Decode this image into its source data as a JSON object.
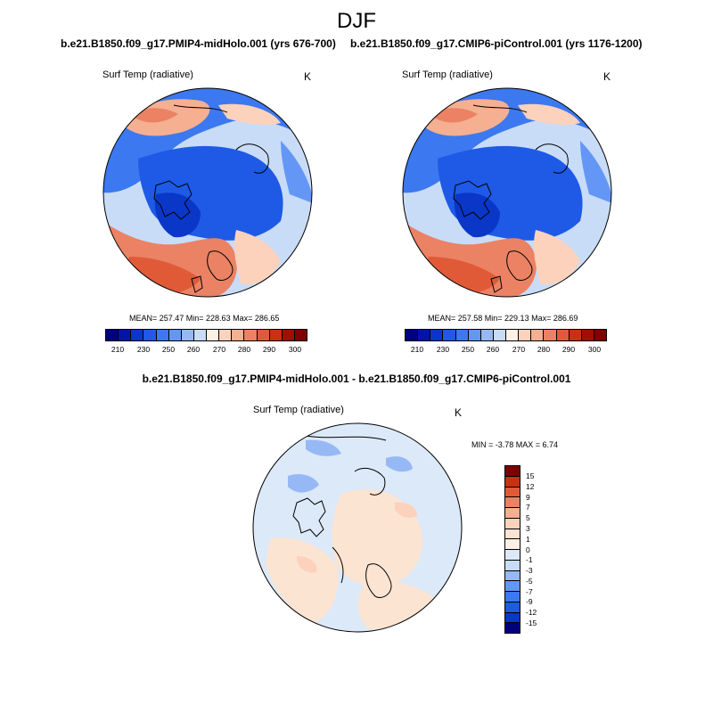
{
  "figure": {
    "title": "DJF"
  },
  "panels": [
    {
      "title": "b.e21.B1850.f09_g17.PMIP4-midHolo.001 (yrs 676-700)",
      "variable": "Surf Temp (radiative)",
      "units": "K",
      "stats": "MEAN= 257.47  Min= 228.63  Max= 286.65",
      "colorbar_labels": [
        "210",
        "230",
        "250",
        "260",
        "270",
        "280",
        "290",
        "300"
      ]
    },
    {
      "title": "b.e21.B1850.f09_g17.CMIP6-piControl.001 (yrs 1176-1200)",
      "variable": "Surf Temp (radiative)",
      "units": "K",
      "stats": "MEAN= 257.58  Min= 229.13  Max= 286.69",
      "colorbar_labels": [
        "210",
        "230",
        "250",
        "260",
        "270",
        "280",
        "290",
        "300"
      ]
    },
    {
      "title": "b.e21.B1850.f09_g17.PMIP4-midHolo.001 - b.e21.B1850.f09_g17.CMIP6-piControl.001",
      "variable": "Surf Temp (radiative)",
      "units": "K",
      "stats": "MIN =  -3.78 MAX =   6.74",
      "colorbar_labels": [
        "15",
        "12",
        "9",
        "7",
        "5",
        "3",
        "1",
        "0",
        "-1",
        "-3",
        "-5",
        "-7",
        "-9",
        "-12",
        "-15"
      ]
    }
  ],
  "colors": {
    "temp_scale": [
      "#00007f",
      "#0014a8",
      "#0a37c8",
      "#1e5ae6",
      "#3c78f0",
      "#6496f5",
      "#96b9f5",
      "#c8dcf8",
      "#fff0e6",
      "#fcd2bc",
      "#f5af91",
      "#eb8264",
      "#e15a37",
      "#c8320f",
      "#a00f00",
      "#7f0000"
    ],
    "diff_scale": [
      "#00007f",
      "#0014a8",
      "#0a37c8",
      "#1e5ae6",
      "#3c78f0",
      "#6496f5",
      "#96b9f5",
      "#c8dcf8",
      "#dce9f8",
      "#fce4d2",
      "#fcd2bc",
      "#f5af91",
      "#eb8264",
      "#e15a37",
      "#c8320f",
      "#7f0000"
    ]
  }
}
